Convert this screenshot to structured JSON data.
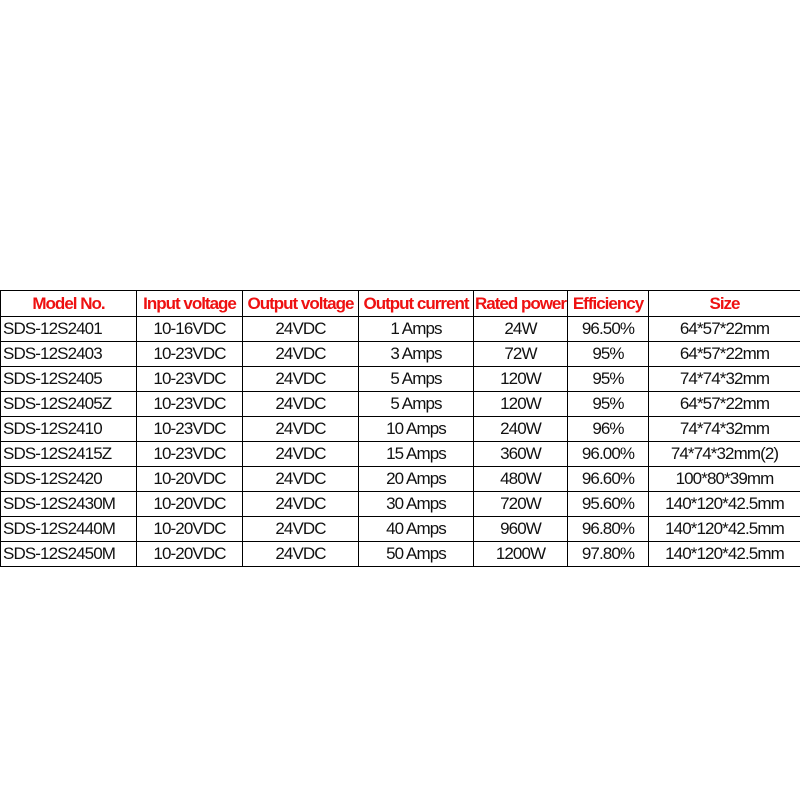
{
  "table": {
    "headers": [
      "Model No.",
      "Input voltage",
      "Output voltage",
      "Output current",
      "Rated power",
      "Efficiency",
      "Size"
    ],
    "header_color": "#ee1111",
    "rows": [
      [
        "SDS-12S2401",
        "10-16VDC",
        "24VDC",
        "1 Amps",
        "24W",
        "96.50%",
        "64*57*22mm"
      ],
      [
        "SDS-12S2403",
        "10-23VDC",
        "24VDC",
        "3 Amps",
        "72W",
        "95%",
        "64*57*22mm"
      ],
      [
        "SDS-12S2405",
        "10-23VDC",
        "24VDC",
        "5 Amps",
        "120W",
        "95%",
        "74*74*32mm"
      ],
      [
        "SDS-12S2405Z",
        "10-23VDC",
        "24VDC",
        "5 Amps",
        "120W",
        "95%",
        "64*57*22mm"
      ],
      [
        "SDS-12S2410",
        "10-23VDC",
        "24VDC",
        "10 Amps",
        "240W",
        "96%",
        "74*74*32mm"
      ],
      [
        "SDS-12S2415Z",
        "10-23VDC",
        "24VDC",
        "15 Amps",
        "360W",
        "96.00%",
        "74*74*32mm(2)"
      ],
      [
        "SDS-12S2420",
        "10-20VDC",
        "24VDC",
        "20 Amps",
        "480W",
        "96.60%",
        "100*80*39mm"
      ],
      [
        "SDS-12S2430M",
        "10-20VDC",
        "24VDC",
        "30 Amps",
        "720W",
        "95.60%",
        "140*120*42.5mm"
      ],
      [
        "SDS-12S2440M",
        "10-20VDC",
        "24VDC",
        "40 Amps",
        "960W",
        "96.80%",
        "140*120*42.5mm"
      ],
      [
        "SDS-12S2450M",
        "10-20VDC",
        "24VDC",
        "50 Amps",
        "1200W",
        "97.80%",
        "140*120*42.5mm"
      ]
    ]
  }
}
